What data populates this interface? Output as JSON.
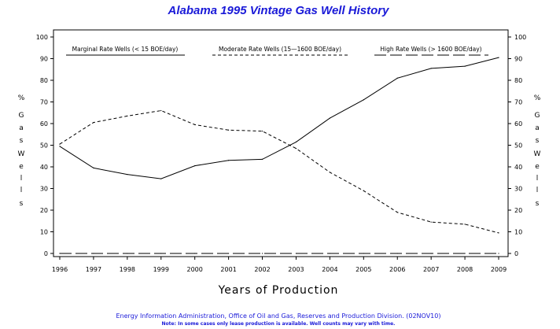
{
  "chart_data": {
    "type": "line",
    "title": "Alabama 1995 Vintage Gas Well History",
    "xlabel": "Years of Production",
    "ylabel_letters": [
      "%",
      "G",
      "a",
      "s",
      "W",
      "e",
      "l",
      "l",
      "s"
    ],
    "x": [
      "1996",
      "1997",
      "1998",
      "1999",
      "2000",
      "2001",
      "2002",
      "2003",
      "2004",
      "2005",
      "2006",
      "2007",
      "2008",
      "2009"
    ],
    "yticks": [
      "0",
      "10",
      "20",
      "30",
      "40",
      "50",
      "60",
      "70",
      "80",
      "90",
      "100"
    ],
    "ylim": [
      0,
      100
    ],
    "legend_placement": "top",
    "series": [
      {
        "name": "Marginal Rate Wells (<  15 BOE/day)",
        "style": "solid",
        "values": [
          49.5,
          39.5,
          36.5,
          34.5,
          40.5,
          43.0,
          43.5,
          51.5,
          62.5,
          71.0,
          81.0,
          85.5,
          86.5,
          90.5
        ]
      },
      {
        "name": "Moderate Rate Wells (15—1600 BOE/day)",
        "style": "dashed",
        "values": [
          50.5,
          60.5,
          63.5,
          66.0,
          59.5,
          57.0,
          56.5,
          48.5,
          37.5,
          29.0,
          19.0,
          14.5,
          13.5,
          9.5
        ]
      },
      {
        "name": "High Rate Wells (> 1600 BOE/day)",
        "style": "longdash",
        "values": [
          0,
          0,
          0,
          0,
          0,
          0,
          0,
          0,
          0,
          0,
          0,
          0,
          0,
          0
        ]
      }
    ],
    "grid": false
  },
  "footer": {
    "source": "Energy Information Administration, Office of Oil and Gas, Reserves and Production Division. (02NOV10)",
    "note": "Note: In some cases only lease production is available. Well counts may vary with time."
  },
  "colors": {
    "title": "#1a1ad8",
    "footer": "#1a1ad8",
    "lines": "#000000"
  }
}
